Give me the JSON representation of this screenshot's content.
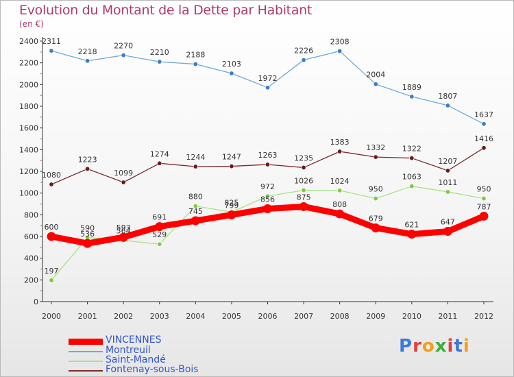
{
  "header": {
    "title": "Evolution du Montant de la Dette par Habitant",
    "subtitle": "(en €)"
  },
  "logo": {
    "letters": [
      "P",
      "r",
      "o",
      "x",
      "i",
      "t",
      "i"
    ],
    "colors": [
      "#3a7bd5",
      "#e0403a",
      "#f0a020",
      "#3ab03a",
      "#e0403a",
      "#3a7bd5",
      "#f0a020"
    ]
  },
  "chart_data": {
    "type": "line",
    "title": "Evolution du Montant de la Dette par Habitant",
    "ylabel": "(en €)",
    "xlabel": "",
    "x": [
      "2000",
      "2001",
      "2002",
      "2003",
      "2004",
      "2005",
      "2006",
      "2007",
      "2008",
      "2009",
      "2010",
      "2011",
      "2012"
    ],
    "yticks": [
      "0",
      "200",
      "400",
      "600",
      "800",
      "1000",
      "1200",
      "1400",
      "1600",
      "1800",
      "2000",
      "2200",
      "2400"
    ],
    "ylim": [
      0,
      2400
    ],
    "grid": false,
    "legend": "bottom-left",
    "series": [
      {
        "name": "VINCENNES",
        "color": "#ff0000",
        "values": [
          600,
          536,
          593,
          691,
          745,
          799,
          856,
          875,
          808,
          679,
          621,
          647,
          787
        ],
        "labels": [
          "600",
          "536",
          "593",
          "691",
          "745",
          "799",
          "856",
          "875",
          "808",
          "679",
          "621",
          "647",
          "787"
        ]
      },
      {
        "name": "Montreuil",
        "color": "#6fa8dc",
        "marker": "#3d7dc4",
        "values": [
          2311,
          2218,
          2270,
          2210,
          2188,
          2103,
          1972,
          2226,
          2308,
          2004,
          1889,
          1807,
          1637
        ],
        "labels": [
          "2311",
          "2218",
          "2270",
          "2210",
          "2188",
          "2103",
          "1972",
          "2226",
          "2308",
          "2004",
          "1889",
          "1807",
          "1637"
        ]
      },
      {
        "name": "Saint-Mandé",
        "color": "#a8e28a",
        "marker": "#7acc3a",
        "values": [
          197,
          590,
          564,
          529,
          880,
          825,
          972,
          1026,
          1024,
          950,
          1063,
          1011,
          950
        ],
        "labels": [
          "197",
          "590",
          "564",
          "529",
          "880",
          "825",
          "972",
          "1026",
          "1024",
          "950",
          "1063",
          "1011",
          "950"
        ]
      },
      {
        "name": "Fontenay-sous-Bois",
        "color": "#7a2a2a",
        "marker": "#6a1a1a",
        "values": [
          1080,
          1223,
          1099,
          1274,
          1244,
          1247,
          1263,
          1235,
          1383,
          1332,
          1322,
          1207,
          1416
        ],
        "labels": [
          "1080",
          "1223",
          "1099",
          "1274",
          "1244",
          "1247",
          "1263",
          "1235",
          "1383",
          "1332",
          "1322",
          "1207",
          "1416"
        ]
      }
    ]
  }
}
